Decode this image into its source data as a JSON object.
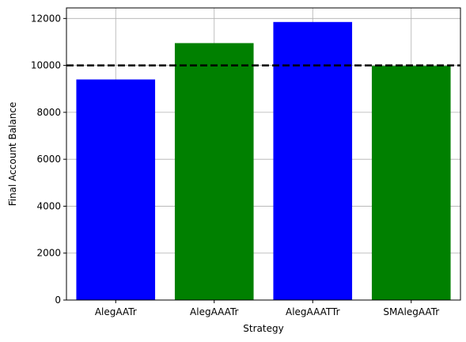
{
  "chart_data": {
    "type": "bar",
    "title": "",
    "xlabel": "Strategy",
    "ylabel": "Final Account Balance",
    "categories": [
      "AlegAATr",
      "AlegAAATr",
      "AlegAAATTr",
      "SMAlegAATr"
    ],
    "values": [
      9400,
      10950,
      11850,
      9980
    ],
    "bar_colors": [
      "#0000ff",
      "#008000",
      "#0000ff",
      "#008000"
    ],
    "ylim": [
      0,
      12450
    ],
    "yticks": [
      0,
      2000,
      4000,
      6000,
      8000,
      10000,
      12000
    ],
    "ytick_labels": [
      "0",
      "2000",
      "4000",
      "6000",
      "8000",
      "10000",
      "12000"
    ],
    "reference_line": {
      "value": 10000,
      "color": "#000000",
      "style": "dashed"
    },
    "grid": true
  }
}
